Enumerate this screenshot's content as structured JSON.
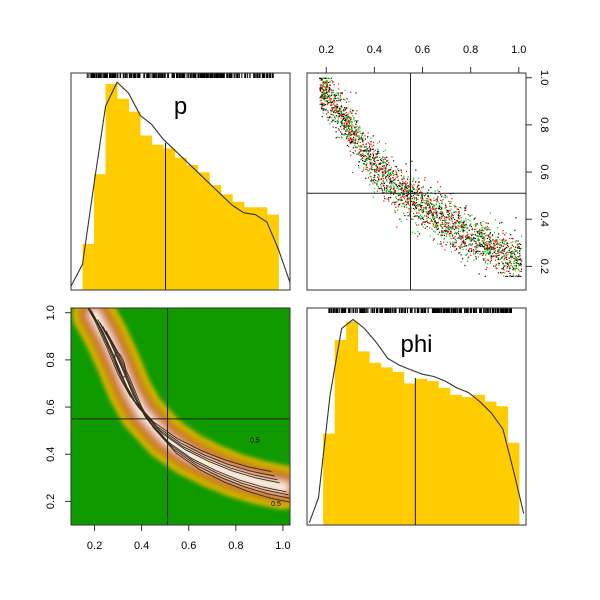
{
  "chart_data": [
    {
      "panel": "top-left",
      "type": "histogram",
      "variable": "p",
      "title": "p",
      "bins": [
        0.15,
        0.2,
        0.25,
        0.3,
        0.35,
        0.4,
        0.45,
        0.5,
        0.55,
        0.6,
        0.65,
        0.7,
        0.75,
        0.8,
        0.85,
        0.9,
        0.95,
        1.0
      ],
      "counts": [
        25,
        63,
        112,
        104,
        97,
        84,
        79,
        77,
        72,
        68,
        64,
        57,
        52,
        48,
        45,
        45,
        41
      ],
      "density_curve": [
        [
          0.1,
          2
        ],
        [
          0.15,
          14
        ],
        [
          0.2,
          58
        ],
        [
          0.25,
          100
        ],
        [
          0.3,
          113
        ],
        [
          0.35,
          107
        ],
        [
          0.4,
          95
        ],
        [
          0.45,
          90
        ],
        [
          0.5,
          82
        ],
        [
          0.55,
          76
        ],
        [
          0.6,
          70
        ],
        [
          0.65,
          64
        ],
        [
          0.7,
          58
        ],
        [
          0.75,
          52
        ],
        [
          0.8,
          46
        ],
        [
          0.85,
          42
        ],
        [
          0.9,
          41
        ],
        [
          0.95,
          37
        ],
        [
          1.0,
          22
        ],
        [
          1.05,
          4
        ]
      ],
      "marker": 0.51,
      "rug": true,
      "xlim": [
        0.1,
        1.05
      ],
      "ylim": [
        0,
        118
      ],
      "colors": {
        "bars": "#ffcc00",
        "curve": "#333333"
      }
    },
    {
      "panel": "top-right",
      "type": "scatter",
      "x_variable": "phi",
      "y_variable": "p",
      "description": "dense cloud of points following a decreasing curve",
      "curve_x": [
        0.16,
        0.2,
        0.25,
        0.3,
        0.35,
        0.4,
        0.45,
        0.5,
        0.55,
        0.6,
        0.65,
        0.7,
        0.75,
        0.8,
        0.85,
        0.9,
        0.95,
        1.0
      ],
      "curve_y": [
        0.96,
        0.93,
        0.86,
        0.78,
        0.7,
        0.63,
        0.58,
        0.53,
        0.49,
        0.45,
        0.42,
        0.39,
        0.36,
        0.33,
        0.3,
        0.28,
        0.25,
        0.22
      ],
      "crosshair": {
        "x": 0.55,
        "y": 0.51
      },
      "xlim": [
        0.12,
        1.03
      ],
      "ylim": [
        0.1,
        1.02
      ],
      "x_ticks": [
        "0.2",
        "0.4",
        "0.6",
        "0.8",
        "1.0"
      ],
      "y_ticks": [
        "0.2",
        "0.4",
        "0.6",
        "0.8",
        "1.0"
      ],
      "point_colors": [
        "#000000",
        "#ff0000",
        "#00cd00"
      ]
    },
    {
      "panel": "bottom-left",
      "type": "contour",
      "x_variable": "p",
      "y_variable": "phi",
      "description": "2D density image with contour lines along decreasing ridge",
      "ridge_x": [
        0.2,
        0.25,
        0.3,
        0.35,
        0.4,
        0.5,
        0.6,
        0.7,
        0.8,
        0.9,
        0.95,
        1.0
      ],
      "ridge_y": [
        0.99,
        0.9,
        0.79,
        0.67,
        0.58,
        0.47,
        0.4,
        0.35,
        0.31,
        0.28,
        0.27,
        0.26
      ],
      "contour_labels": [
        "0.5",
        "0.5"
      ],
      "crosshair": {
        "x": 0.51,
        "y": 0.55
      },
      "xlim": [
        0.1,
        1.03
      ],
      "ylim": [
        0.1,
        1.02
      ],
      "x_ticks": [
        "0.2",
        "0.4",
        "0.6",
        "0.8",
        "1.0"
      ],
      "y_ticks": [
        "0.2",
        "0.4",
        "0.6",
        "0.8",
        "1.0"
      ],
      "colors": {
        "background": "#0f9a00",
        "low": "#d9b400",
        "mid": "#cc7a30",
        "high": "#e0a890",
        "peak": "#f4eadc"
      }
    },
    {
      "panel": "bottom-right",
      "type": "histogram",
      "variable": "phi",
      "title": "phi",
      "bins": [
        0.15,
        0.2,
        0.25,
        0.3,
        0.35,
        0.4,
        0.45,
        0.5,
        0.55,
        0.6,
        0.65,
        0.7,
        0.75,
        0.8,
        0.85,
        0.9,
        0.95,
        1.0
      ],
      "counts": [
        40,
        81,
        89,
        76,
        71,
        69,
        67,
        62,
        64,
        63,
        60,
        57,
        56,
        57,
        54,
        52,
        36
      ],
      "density_curve": [
        [
          0.09,
          1
        ],
        [
          0.13,
          12
        ],
        [
          0.18,
          57
        ],
        [
          0.23,
          86
        ],
        [
          0.28,
          90
        ],
        [
          0.33,
          86
        ],
        [
          0.38,
          80
        ],
        [
          0.43,
          73
        ],
        [
          0.48,
          70
        ],
        [
          0.53,
          68
        ],
        [
          0.58,
          66
        ],
        [
          0.63,
          65
        ],
        [
          0.68,
          63
        ],
        [
          0.73,
          60
        ],
        [
          0.78,
          58
        ],
        [
          0.83,
          54
        ],
        [
          0.88,
          49
        ],
        [
          0.93,
          42
        ],
        [
          0.98,
          22
        ],
        [
          1.02,
          5
        ]
      ],
      "marker": 0.55,
      "rug": true,
      "xlim": [
        0.08,
        1.03
      ],
      "ylim": [
        0,
        95
      ],
      "colors": {
        "bars": "#ffcc00",
        "curve": "#333333"
      }
    }
  ]
}
